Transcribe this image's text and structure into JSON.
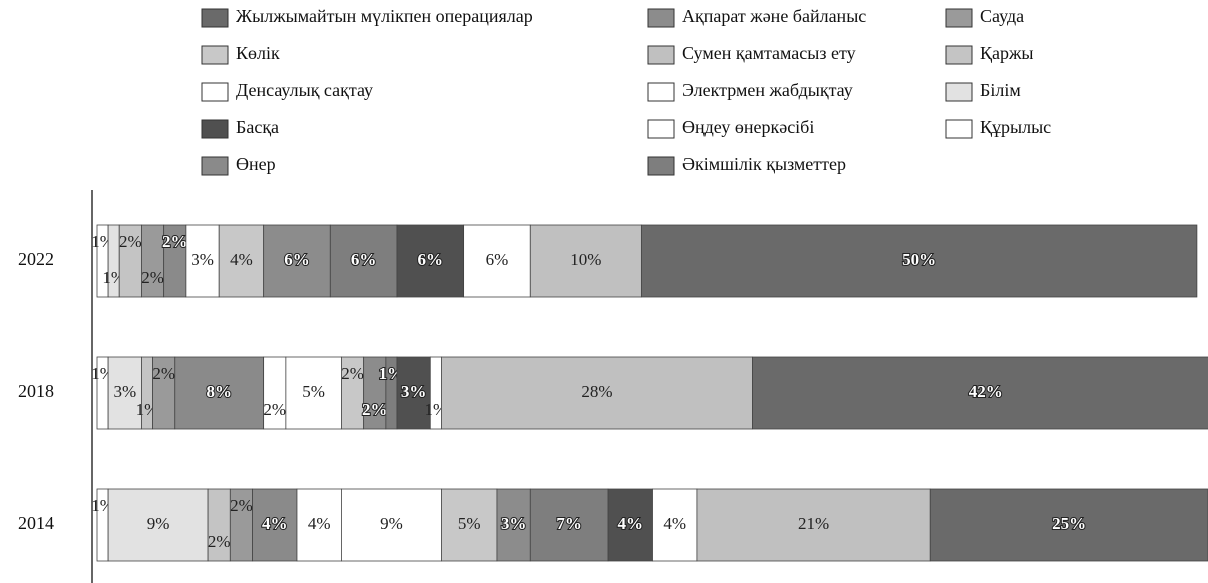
{
  "chart_data": {
    "type": "stacked_bar",
    "orientation": "horizontal",
    "categories": [
      "2022",
      "2018",
      "2014"
    ],
    "xlim": [
      0,
      100
    ],
    "series": [
      {
        "name": "Құрылыс",
        "color": "#ffffff",
        "values": [
          1,
          1,
          1
        ],
        "value_labels": [
          "1%",
          "1%",
          "1%"
        ]
      },
      {
        "name": "Білім",
        "color": "#e2e2e2",
        "values": [
          1,
          3,
          9
        ],
        "value_labels": [
          "1%",
          "3%",
          "9%"
        ]
      },
      {
        "name": "Қаржы",
        "color": "#c4c4c4",
        "values": [
          2,
          1,
          2
        ],
        "value_labels": [
          "2%",
          "1%",
          "2%"
        ]
      },
      {
        "name": "Сауда",
        "color": "#9a9a9a",
        "values": [
          2,
          2,
          2
        ],
        "value_labels": [
          "2%",
          "2%",
          "2%"
        ]
      },
      {
        "name": "Өнер",
        "color": "#8a8a8a",
        "values": [
          2,
          8,
          4
        ],
        "value_labels": [
          "2%",
          "8%",
          "4%"
        ]
      },
      {
        "name": "Денсаулық сақтау",
        "color": "#ffffff",
        "values": [
          3,
          2,
          4
        ],
        "value_labels": [
          "3%",
          "2%",
          "4%"
        ]
      },
      {
        "name": "Өңдеу өнеркәсібі",
        "color": "#ffffff",
        "values": [
          0,
          5,
          9
        ],
        "value_labels": [
          null,
          "5%",
          "9%"
        ]
      },
      {
        "name": "Көлік",
        "color": "#c8c8c8",
        "values": [
          4,
          2,
          5
        ],
        "value_labels": [
          "4%",
          "2%",
          "5%"
        ]
      },
      {
        "name": "Ақпарат және байланыс",
        "color": "#8c8c8c",
        "values": [
          6,
          2,
          3
        ],
        "value_labels": [
          "6%",
          "2%",
          "3%"
        ]
      },
      {
        "name": "Әкімшілік қызметтер",
        "color": "#7e7e7e",
        "values": [
          6,
          1,
          7
        ],
        "value_labels": [
          "6%",
          "1%",
          "7%"
        ]
      },
      {
        "name": "Басқа",
        "color": "#505050",
        "values": [
          6,
          3,
          4
        ],
        "value_labels": [
          "6%",
          "3%",
          "4%"
        ]
      },
      {
        "name": "Электрмен жабдықтау",
        "color": "#ffffff",
        "values": [
          6,
          1,
          4
        ],
        "value_labels": [
          "6%",
          "1%",
          "4%"
        ]
      },
      {
        "name": "Сумен қамтамасыз ету",
        "color": "#c0c0c0",
        "values": [
          10,
          28,
          21
        ],
        "value_labels": [
          "10%",
          "28%",
          "21%"
        ]
      },
      {
        "name": "Жылжымайтын мүлікпен операциялар",
        "color": "#6a6a6a",
        "values": [
          50,
          42,
          25
        ],
        "value_labels": [
          "50%",
          "42%",
          "25%"
        ]
      }
    ]
  }
}
